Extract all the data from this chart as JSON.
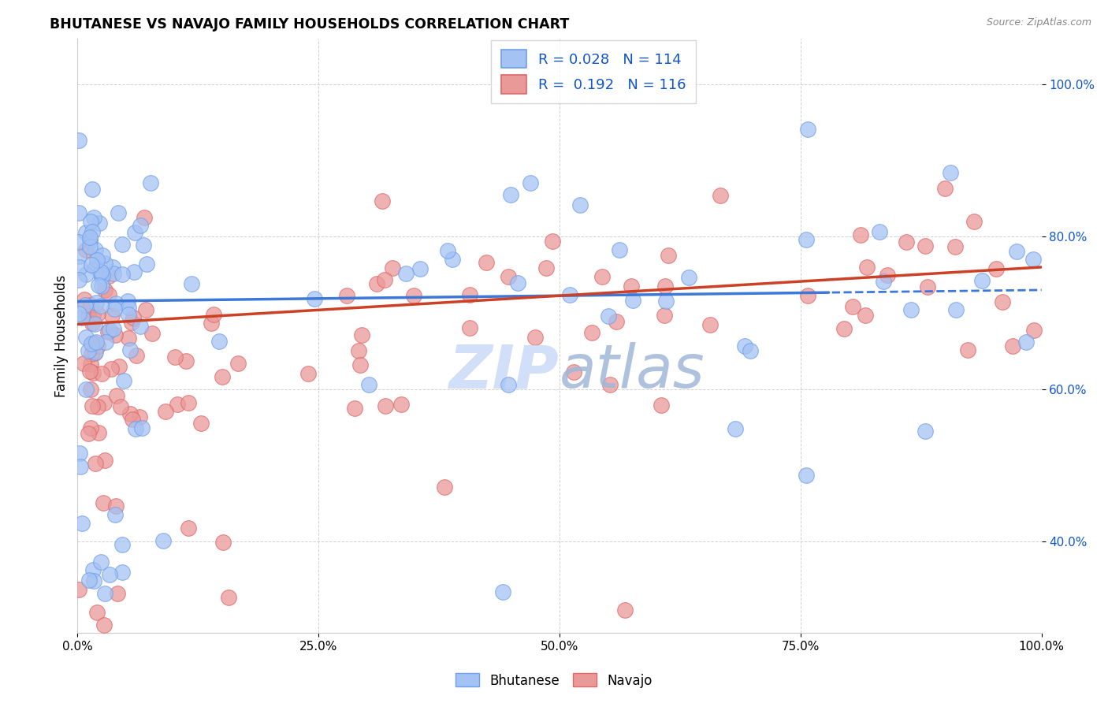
{
  "title": "BHUTANESE VS NAVAJO FAMILY HOUSEHOLDS CORRELATION CHART",
  "source": "Source: ZipAtlas.com",
  "ylabel": "Family Households",
  "xlim": [
    0,
    1
  ],
  "ylim": [
    0.28,
    1.06
  ],
  "ytick_labels": [
    "40.0%",
    "60.0%",
    "80.0%",
    "100.0%"
  ],
  "ytick_values": [
    0.4,
    0.6,
    0.8,
    1.0
  ],
  "xtick_labels": [
    "0.0%",
    "25.0%",
    "50.0%",
    "75.0%",
    "100.0%"
  ],
  "xtick_values": [
    0.0,
    0.25,
    0.5,
    0.75,
    1.0
  ],
  "blue_R": "0.028",
  "blue_N": "114",
  "pink_R": "0.192",
  "pink_N": "116",
  "blue_color": "#a4c2f4",
  "pink_color": "#ea9999",
  "blue_edge_color": "#6d9eeb",
  "pink_edge_color": "#e06666",
  "blue_line_color": "#3c78d8",
  "pink_line_color": "#cc4125",
  "legend_text_color": "#1155cc",
  "watermark_color": "#c9daf8",
  "grid_color": "#cccccc"
}
